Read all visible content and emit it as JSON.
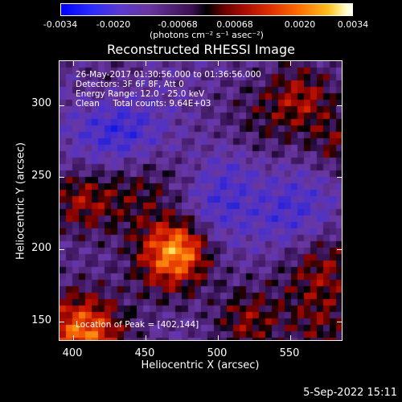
{
  "colorbar": {
    "ticks": [
      "-0.0034",
      "-0.0020",
      "-0.00068",
      "0.00068",
      "0.0020",
      "0.0034"
    ],
    "units_text": "(photons cm⁻² s⁻¹ asec⁻²)",
    "min": -0.0034,
    "max": 0.0034
  },
  "title": "Reconstructed RHESSI Image",
  "info": {
    "line1": "26-May-2017 01:30:56.000 to 01:36:56.000",
    "line2": "Detectors: 3F 6F 8F, Att 0",
    "line3": "Energy Range: 12.0 - 25.0 keV",
    "line4": "Clean     Total counts: 9.64E+03",
    "peak": "Location of Peak = [402,144]"
  },
  "axes": {
    "xlabel": "Heliocentric X (arcsec)",
    "ylabel": "Heliocentric Y (arcsec)",
    "xticks": [
      "400",
      "450",
      "500",
      "550"
    ],
    "yticks": [
      "300",
      "250",
      "200",
      "150"
    ]
  },
  "footer_date": "5-Sep-2022 15:11"
}
